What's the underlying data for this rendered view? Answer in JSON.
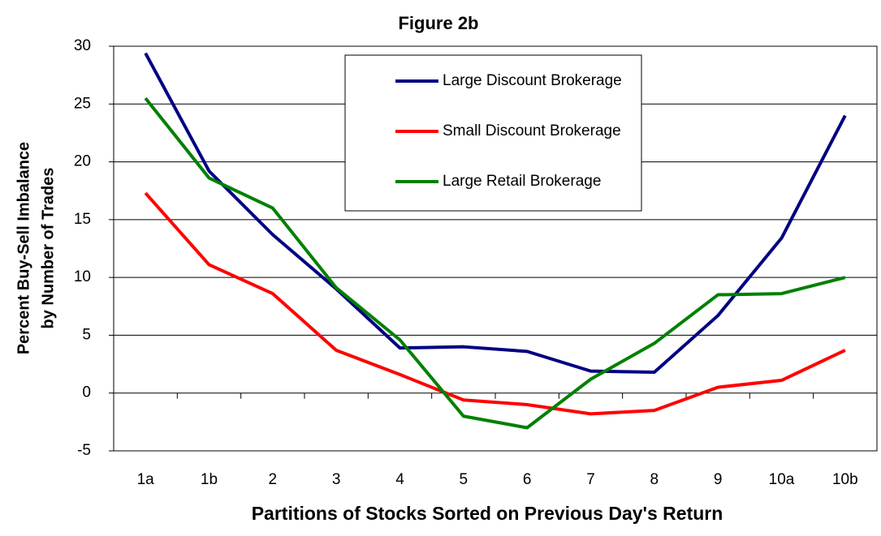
{
  "chart_data": {
    "type": "line",
    "title": "Figure 2b",
    "xlabel": "Partitions of Stocks Sorted on Previous Day's Return",
    "ylabel": [
      "Percent Buy-Sell Imbalance",
      "by Number of Trades"
    ],
    "categories": [
      "1a",
      "1b",
      "2",
      "3",
      "4",
      "5",
      "6",
      "7",
      "8",
      "9",
      "10a",
      "10b"
    ],
    "series": [
      {
        "name": "Large Discount Brokerage",
        "color": "#000080",
        "values": [
          29.4,
          19.2,
          13.7,
          9.0,
          3.9,
          4.0,
          3.6,
          1.9,
          1.8,
          6.7,
          13.4,
          24.0
        ]
      },
      {
        "name": "Small Discount Brokerage",
        "color": "#ff0000",
        "values": [
          17.3,
          11.1,
          8.6,
          3.7,
          1.6,
          -0.6,
          -1.0,
          -1.8,
          -1.5,
          0.5,
          1.1,
          3.7
        ]
      },
      {
        "name": "Large Retail Brokerage",
        "color": "#008000",
        "values": [
          25.5,
          18.6,
          16.0,
          9.1,
          4.6,
          -2.0,
          -3.0,
          1.2,
          4.3,
          8.5,
          8.6,
          10.0
        ]
      }
    ],
    "ylim": [
      -5,
      30
    ],
    "yticks": [
      -5,
      0,
      5,
      10,
      15,
      20,
      25,
      30
    ],
    "grid": true
  }
}
